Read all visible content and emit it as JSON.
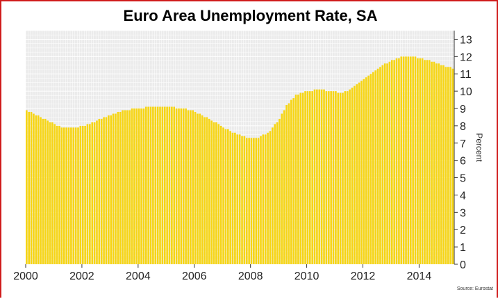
{
  "chart_data": {
    "type": "bar",
    "title": "Euro Area Unemployment Rate, SA",
    "ylabel": "Percent",
    "xlabel": "",
    "source": "Source: Eurostat",
    "ylim": [
      0,
      13.5
    ],
    "y_ticks": [
      "0",
      "1",
      "2",
      "3",
      "4",
      "5",
      "6",
      "7",
      "8",
      "9",
      "10",
      "11",
      "12",
      "13"
    ],
    "x_ticks": [
      "2000",
      "2002",
      "2004",
      "2006",
      "2008",
      "2010",
      "2012",
      "2014"
    ],
    "x_range": [
      2000.0,
      2015.25
    ],
    "bar_color": "#f6d515",
    "plot_background": "#ebebeb",
    "grid": true,
    "y_axis_position": "right",
    "series": [
      {
        "name": "",
        "frequency": "monthly",
        "start": "2000-01",
        "end": "2015-03",
        "anchors": [
          [
            2000.0,
            8.9
          ],
          [
            2000.5,
            8.5
          ],
          [
            2001.0,
            8.1
          ],
          [
            2001.25,
            7.9
          ],
          [
            2001.75,
            7.9
          ],
          [
            2002.25,
            8.1
          ],
          [
            2002.75,
            8.5
          ],
          [
            2003.5,
            8.9
          ],
          [
            2004.0,
            9.0
          ],
          [
            2004.5,
            9.1
          ],
          [
            2005.0,
            9.1
          ],
          [
            2005.5,
            9.0
          ],
          [
            2005.9,
            8.9
          ],
          [
            2006.5,
            8.4
          ],
          [
            2007.0,
            7.9
          ],
          [
            2007.5,
            7.5
          ],
          [
            2007.9,
            7.3
          ],
          [
            2008.2,
            7.3
          ],
          [
            2008.6,
            7.6
          ],
          [
            2009.0,
            8.4
          ],
          [
            2009.25,
            9.2
          ],
          [
            2009.6,
            9.8
          ],
          [
            2010.0,
            10.0
          ],
          [
            2010.4,
            10.1
          ],
          [
            2010.9,
            10.0
          ],
          [
            2011.25,
            9.9
          ],
          [
            2011.6,
            10.2
          ],
          [
            2012.0,
            10.7
          ],
          [
            2012.5,
            11.3
          ],
          [
            2013.0,
            11.8
          ],
          [
            2013.4,
            12.0
          ],
          [
            2013.8,
            12.0
          ],
          [
            2014.25,
            11.8
          ],
          [
            2014.6,
            11.6
          ],
          [
            2015.0,
            11.4
          ],
          [
            2015.2,
            11.3
          ]
        ]
      }
    ]
  }
}
